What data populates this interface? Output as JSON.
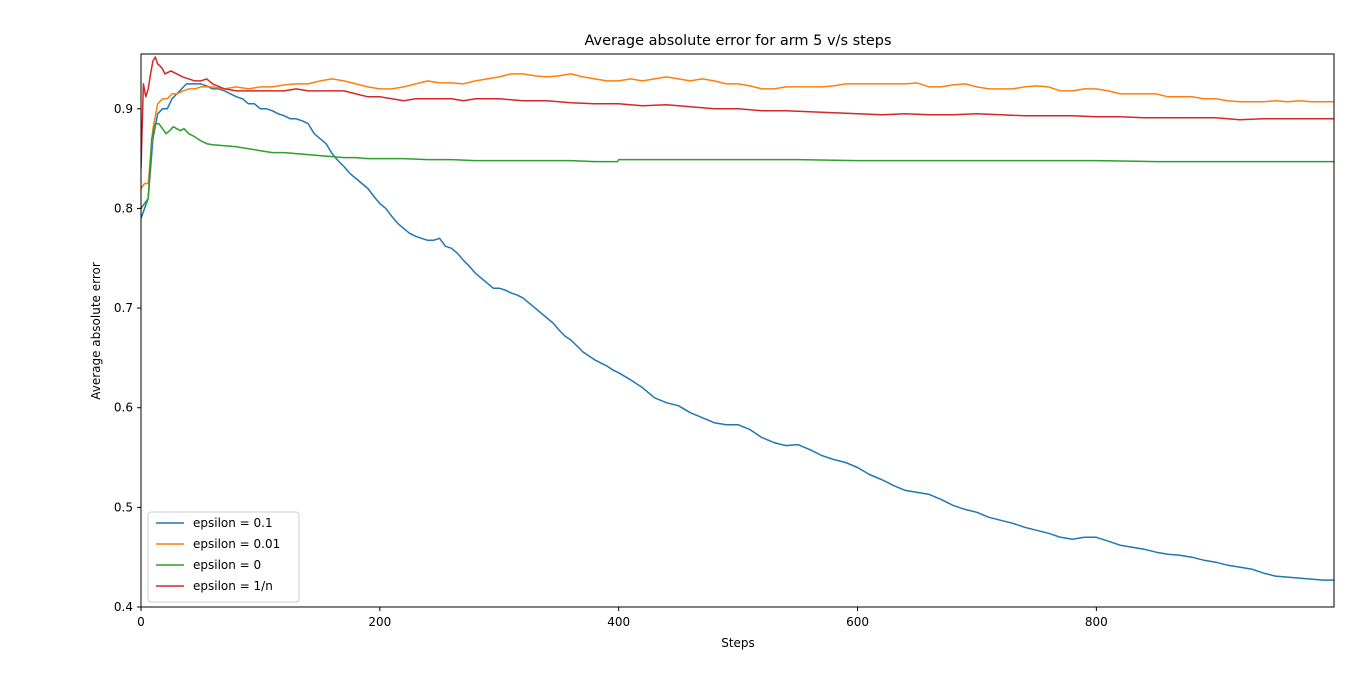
{
  "chart_data": {
    "type": "line",
    "title": "Average absolute error for arm 5 v/s steps",
    "xlabel": "Steps",
    "ylabel": "Average absolute error",
    "xlim": [
      0,
      999
    ],
    "ylim": [
      0.4,
      0.955
    ],
    "xticks": [
      0,
      200,
      400,
      600,
      800
    ],
    "yticks": [
      0.4,
      0.5,
      0.6,
      0.7,
      0.8,
      0.9
    ],
    "grid": false,
    "legend_position": "lower-left",
    "series": [
      {
        "name": "epsilon = 0.1",
        "color": "#1f77b4",
        "x": [
          0,
          3,
          6,
          10,
          14,
          18,
          22,
          26,
          30,
          34,
          38,
          42,
          46,
          50,
          55,
          60,
          65,
          70,
          75,
          80,
          85,
          90,
          95,
          100,
          105,
          110,
          115,
          120,
          125,
          130,
          135,
          140,
          145,
          150,
          155,
          160,
          165,
          170,
          175,
          180,
          185,
          190,
          195,
          200,
          205,
          210,
          215,
          220,
          225,
          230,
          235,
          240,
          245,
          250,
          255,
          260,
          265,
          270,
          275,
          280,
          285,
          290,
          295,
          300,
          305,
          310,
          315,
          320,
          325,
          330,
          335,
          340,
          345,
          350,
          355,
          360,
          365,
          370,
          375,
          380,
          385,
          390,
          395,
          400,
          410,
          420,
          430,
          440,
          450,
          460,
          470,
          480,
          490,
          500,
          510,
          520,
          530,
          540,
          550,
          560,
          570,
          580,
          590,
          600,
          610,
          620,
          630,
          640,
          650,
          660,
          670,
          680,
          690,
          700,
          710,
          720,
          730,
          740,
          750,
          760,
          770,
          780,
          790,
          800,
          810,
          820,
          830,
          840,
          850,
          860,
          870,
          880,
          890,
          900,
          910,
          920,
          930,
          940,
          950,
          960,
          970,
          980,
          990,
          999
        ],
        "y": [
          0.79,
          0.8,
          0.81,
          0.87,
          0.895,
          0.9,
          0.9,
          0.91,
          0.915,
          0.92,
          0.925,
          0.925,
          0.925,
          0.925,
          0.923,
          0.92,
          0.92,
          0.918,
          0.915,
          0.912,
          0.91,
          0.905,
          0.905,
          0.9,
          0.9,
          0.898,
          0.895,
          0.893,
          0.89,
          0.89,
          0.888,
          0.885,
          0.875,
          0.87,
          0.865,
          0.855,
          0.848,
          0.842,
          0.835,
          0.83,
          0.825,
          0.82,
          0.812,
          0.805,
          0.8,
          0.792,
          0.785,
          0.78,
          0.775,
          0.772,
          0.77,
          0.768,
          0.768,
          0.77,
          0.762,
          0.76,
          0.755,
          0.748,
          0.742,
          0.735,
          0.73,
          0.725,
          0.72,
          0.72,
          0.718,
          0.715,
          0.713,
          0.71,
          0.705,
          0.7,
          0.695,
          0.69,
          0.685,
          0.678,
          0.672,
          0.668,
          0.662,
          0.656,
          0.652,
          0.648,
          0.645,
          0.642,
          0.638,
          0.635,
          0.628,
          0.62,
          0.61,
          0.605,
          0.602,
          0.595,
          0.59,
          0.585,
          0.583,
          0.583,
          0.578,
          0.57,
          0.565,
          0.562,
          0.563,
          0.558,
          0.552,
          0.548,
          0.545,
          0.54,
          0.533,
          0.528,
          0.522,
          0.517,
          0.515,
          0.513,
          0.508,
          0.502,
          0.498,
          0.495,
          0.49,
          0.487,
          0.484,
          0.48,
          0.477,
          0.474,
          0.47,
          0.468,
          0.47,
          0.47,
          0.466,
          0.462,
          0.46,
          0.458,
          0.455,
          0.453,
          0.452,
          0.45,
          0.447,
          0.445,
          0.442,
          0.44,
          0.438,
          0.434,
          0.431,
          0.43,
          0.429,
          0.428,
          0.427,
          0.427
        ]
      },
      {
        "name": "epsilon = 0.01",
        "color": "#ff7f0e",
        "x": [
          0,
          3,
          6,
          10,
          14,
          18,
          22,
          26,
          30,
          35,
          40,
          45,
          50,
          60,
          70,
          80,
          90,
          100,
          110,
          120,
          130,
          140,
          150,
          160,
          170,
          180,
          190,
          200,
          210,
          220,
          230,
          240,
          250,
          260,
          270,
          280,
          290,
          300,
          310,
          320,
          330,
          340,
          350,
          360,
          370,
          380,
          390,
          400,
          410,
          420,
          430,
          440,
          450,
          460,
          470,
          480,
          490,
          500,
          510,
          520,
          530,
          540,
          550,
          560,
          570,
          580,
          590,
          600,
          610,
          620,
          630,
          640,
          650,
          660,
          670,
          680,
          690,
          700,
          710,
          720,
          730,
          740,
          750,
          760,
          770,
          780,
          790,
          800,
          810,
          820,
          830,
          840,
          850,
          860,
          870,
          880,
          890,
          900,
          910,
          920,
          930,
          940,
          950,
          960,
          970,
          980,
          990,
          999
        ],
        "y": [
          0.82,
          0.825,
          0.825,
          0.88,
          0.905,
          0.91,
          0.91,
          0.915,
          0.915,
          0.918,
          0.92,
          0.92,
          0.922,
          0.922,
          0.92,
          0.922,
          0.92,
          0.922,
          0.922,
          0.924,
          0.925,
          0.925,
          0.928,
          0.93,
          0.928,
          0.925,
          0.922,
          0.92,
          0.92,
          0.922,
          0.925,
          0.928,
          0.926,
          0.926,
          0.925,
          0.928,
          0.93,
          0.932,
          0.935,
          0.935,
          0.933,
          0.932,
          0.933,
          0.935,
          0.932,
          0.93,
          0.928,
          0.928,
          0.93,
          0.928,
          0.93,
          0.932,
          0.93,
          0.928,
          0.93,
          0.928,
          0.925,
          0.925,
          0.923,
          0.92,
          0.92,
          0.922,
          0.922,
          0.922,
          0.922,
          0.923,
          0.925,
          0.925,
          0.925,
          0.925,
          0.925,
          0.925,
          0.926,
          0.922,
          0.922,
          0.924,
          0.925,
          0.922,
          0.92,
          0.92,
          0.92,
          0.922,
          0.923,
          0.922,
          0.918,
          0.918,
          0.92,
          0.92,
          0.918,
          0.915,
          0.915,
          0.915,
          0.915,
          0.912,
          0.912,
          0.912,
          0.91,
          0.91,
          0.908,
          0.907,
          0.907,
          0.907,
          0.908,
          0.907,
          0.908,
          0.907,
          0.907,
          0.907
        ]
      },
      {
        "name": "epsilon = 0",
        "color": "#2ca02c",
        "x": [
          0,
          3,
          6,
          9,
          12,
          15,
          18,
          21,
          24,
          27,
          30,
          33,
          36,
          40,
          45,
          50,
          55,
          60,
          70,
          80,
          90,
          100,
          110,
          120,
          130,
          140,
          150,
          160,
          170,
          180,
          190,
          200,
          220,
          240,
          260,
          280,
          300,
          320,
          340,
          360,
          380,
          399,
          400,
          420,
          440,
          460,
          480,
          500,
          550,
          600,
          650,
          700,
          750,
          800,
          850,
          900,
          950,
          999
        ],
        "y": [
          0.8,
          0.805,
          0.81,
          0.87,
          0.885,
          0.885,
          0.88,
          0.875,
          0.878,
          0.882,
          0.88,
          0.878,
          0.88,
          0.875,
          0.872,
          0.868,
          0.865,
          0.864,
          0.863,
          0.862,
          0.86,
          0.858,
          0.856,
          0.856,
          0.855,
          0.854,
          0.853,
          0.852,
          0.851,
          0.851,
          0.85,
          0.85,
          0.85,
          0.849,
          0.849,
          0.848,
          0.848,
          0.848,
          0.848,
          0.848,
          0.847,
          0.847,
          0.849,
          0.849,
          0.849,
          0.849,
          0.849,
          0.849,
          0.849,
          0.848,
          0.848,
          0.848,
          0.848,
          0.848,
          0.847,
          0.847,
          0.847,
          0.847
        ]
      },
      {
        "name": "epsilon = 1/n",
        "color": "#d62728",
        "x": [
          0,
          2,
          4,
          6,
          8,
          10,
          12,
          14,
          16,
          18,
          20,
          25,
          30,
          35,
          40,
          45,
          50,
          55,
          60,
          70,
          80,
          90,
          100,
          110,
          120,
          130,
          140,
          150,
          160,
          170,
          180,
          190,
          200,
          210,
          220,
          230,
          240,
          250,
          260,
          270,
          280,
          290,
          300,
          320,
          340,
          360,
          380,
          400,
          420,
          440,
          460,
          480,
          500,
          520,
          540,
          560,
          580,
          600,
          620,
          640,
          660,
          680,
          700,
          720,
          740,
          760,
          780,
          800,
          820,
          840,
          860,
          880,
          900,
          920,
          940,
          960,
          980,
          999
        ],
        "y": [
          0.84,
          0.925,
          0.912,
          0.92,
          0.935,
          0.948,
          0.952,
          0.945,
          0.943,
          0.94,
          0.935,
          0.938,
          0.935,
          0.932,
          0.93,
          0.928,
          0.928,
          0.93,
          0.925,
          0.92,
          0.918,
          0.918,
          0.918,
          0.918,
          0.918,
          0.92,
          0.918,
          0.918,
          0.918,
          0.918,
          0.915,
          0.912,
          0.912,
          0.91,
          0.908,
          0.91,
          0.91,
          0.91,
          0.91,
          0.908,
          0.91,
          0.91,
          0.91,
          0.908,
          0.908,
          0.906,
          0.905,
          0.905,
          0.903,
          0.904,
          0.902,
          0.9,
          0.9,
          0.898,
          0.898,
          0.897,
          0.896,
          0.895,
          0.894,
          0.895,
          0.894,
          0.894,
          0.895,
          0.894,
          0.893,
          0.893,
          0.893,
          0.892,
          0.892,
          0.891,
          0.891,
          0.891,
          0.891,
          0.889,
          0.89,
          0.89,
          0.89,
          0.89
        ]
      }
    ]
  }
}
